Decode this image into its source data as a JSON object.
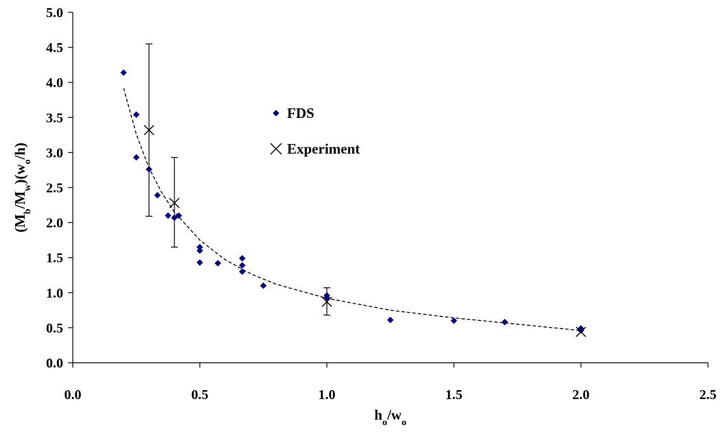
{
  "chart_data": {
    "type": "scatter",
    "xlabel": "h_o/w_o",
    "ylabel": "(M_b/M_w)(w_o/h)",
    "xlim": [
      0.0,
      2.5
    ],
    "ylim": [
      0.0,
      5.0
    ],
    "x_ticks": [
      "0.0",
      "0.5",
      "1.0",
      "1.5",
      "2.0",
      "2.5"
    ],
    "y_ticks": [
      "0.0",
      "0.5",
      "1.0",
      "1.5",
      "2.0",
      "2.5",
      "3.0",
      "3.5",
      "4.0",
      "4.5",
      "5.0"
    ],
    "grid": false,
    "legend_position": "upper-middle",
    "series": [
      {
        "name": "FDS",
        "marker": "diamond",
        "color": "#000080",
        "points": [
          {
            "x": 0.2,
            "y": 4.14
          },
          {
            "x": 0.25,
            "y": 3.54
          },
          {
            "x": 0.25,
            "y": 2.93
          },
          {
            "x": 0.3,
            "y": 2.76
          },
          {
            "x": 0.333,
            "y": 2.39
          },
          {
            "x": 0.375,
            "y": 2.1
          },
          {
            "x": 0.4,
            "y": 2.07
          },
          {
            "x": 0.417,
            "y": 2.1
          },
          {
            "x": 0.5,
            "y": 1.65
          },
          {
            "x": 0.5,
            "y": 1.6
          },
          {
            "x": 0.5,
            "y": 1.43
          },
          {
            "x": 0.571,
            "y": 1.42
          },
          {
            "x": 0.667,
            "y": 1.49
          },
          {
            "x": 0.667,
            "y": 1.39
          },
          {
            "x": 0.667,
            "y": 1.3
          },
          {
            "x": 0.75,
            "y": 1.1
          },
          {
            "x": 1.0,
            "y": 0.96
          },
          {
            "x": 1.0,
            "y": 0.93
          },
          {
            "x": 1.25,
            "y": 0.61
          },
          {
            "x": 1.5,
            "y": 0.6
          },
          {
            "x": 1.7,
            "y": 0.58
          },
          {
            "x": 2.0,
            "y": 0.49
          },
          {
            "x": 2.0,
            "y": 0.46
          }
        ]
      },
      {
        "name": "Experiment",
        "marker": "x",
        "color": "#000000",
        "points": [
          {
            "x": 0.3,
            "y": 3.32,
            "y_low": 2.09,
            "y_high": 4.55
          },
          {
            "x": 0.4,
            "y": 2.28,
            "y_low": 1.65,
            "y_high": 2.93
          },
          {
            "x": 1.0,
            "y": 0.87,
            "y_low": 0.68,
            "y_high": 1.07
          },
          {
            "x": 2.0,
            "y": 0.44
          }
        ]
      }
    ],
    "trendline": {
      "style": "dashed",
      "color": "#000000",
      "points": [
        {
          "x": 0.2,
          "y": 3.92
        },
        {
          "x": 0.25,
          "y": 3.26
        },
        {
          "x": 0.3,
          "y": 2.78
        },
        {
          "x": 0.35,
          "y": 2.43
        },
        {
          "x": 0.4,
          "y": 2.15
        },
        {
          "x": 0.5,
          "y": 1.75
        },
        {
          "x": 0.6,
          "y": 1.47
        },
        {
          "x": 0.7,
          "y": 1.27
        },
        {
          "x": 0.8,
          "y": 1.12
        },
        {
          "x": 1.0,
          "y": 0.92
        },
        {
          "x": 1.25,
          "y": 0.75
        },
        {
          "x": 1.5,
          "y": 0.64
        },
        {
          "x": 1.75,
          "y": 0.55
        },
        {
          "x": 2.0,
          "y": 0.46
        }
      ]
    }
  }
}
